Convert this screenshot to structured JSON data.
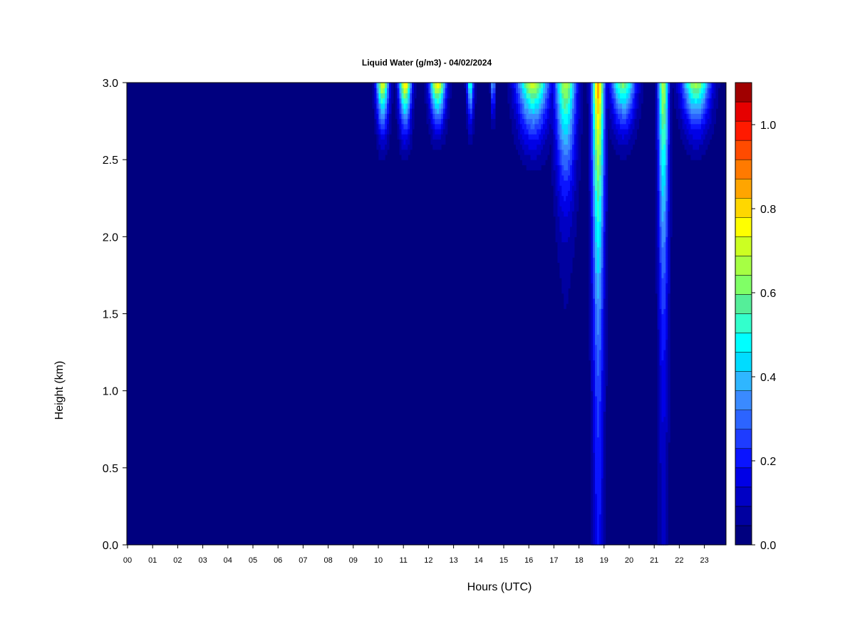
{
  "chart_data": {
    "type": "heatmap",
    "title": "Liquid Water (g/m3) - 04/02/2024",
    "xlabel": "Hours (UTC)",
    "ylabel": "Height (km)",
    "x_ticks": [
      "00",
      "01",
      "02",
      "03",
      "04",
      "05",
      "06",
      "07",
      "08",
      "09",
      "10",
      "11",
      "12",
      "13",
      "14",
      "15",
      "16",
      "17",
      "18",
      "19",
      "20",
      "21",
      "22",
      "23"
    ],
    "xlim": [
      0,
      23.9
    ],
    "y_ticks": [
      "0.0",
      "0.5",
      "1.0",
      "1.5",
      "2.0",
      "2.5",
      "3.0"
    ],
    "ylim": [
      0,
      3.0
    ],
    "colorbar": {
      "range": [
        0,
        1.1
      ],
      "step": 0.05,
      "ticks": [
        "0.0",
        "0.2",
        "0.4",
        "0.6",
        "0.8",
        "1.0"
      ],
      "colors": [
        "#00007F",
        "#0000A0",
        "#0000C4",
        "#0000E6",
        "#0A14FF",
        "#1E3CFF",
        "#2C64FF",
        "#3A8AFF",
        "#2FB6FF",
        "#00DCFF",
        "#00FFFF",
        "#33FFCC",
        "#55EE99",
        "#80FF66",
        "#A6FF44",
        "#CCFF22",
        "#FFFF00",
        "#FFD700",
        "#FFA500",
        "#FF7A00",
        "#FF4B00",
        "#FF1A00",
        "#E60000",
        "#A00000"
      ]
    },
    "grid": false,
    "cloud_events": [
      {
        "center_hour": 10.2,
        "width_hours": 0.35,
        "top_value": 0.85,
        "bottom_km": 2.3,
        "bottom_value": 0.0
      },
      {
        "center_hour": 11.1,
        "width_hours": 0.35,
        "top_value": 0.9,
        "bottom_km": 2.3,
        "bottom_value": 0.0
      },
      {
        "center_hour": 12.4,
        "width_hours": 0.45,
        "top_value": 0.9,
        "bottom_km": 2.4,
        "bottom_value": 0.0
      },
      {
        "center_hour": 13.7,
        "width_hours": 0.2,
        "top_value": 0.6,
        "bottom_km": 2.4,
        "bottom_value": 0.0
      },
      {
        "center_hour": 14.6,
        "width_hours": 0.12,
        "top_value": 0.5,
        "bottom_km": 2.5,
        "bottom_value": 0.0
      },
      {
        "center_hour": 16.2,
        "width_hours": 0.9,
        "top_value": 0.8,
        "bottom_km": 2.2,
        "bottom_value": 0.0
      },
      {
        "center_hour": 17.5,
        "width_hours": 0.6,
        "top_value": 0.75,
        "bottom_km": 1.5,
        "bottom_value": 0.05
      },
      {
        "center_hour": 18.8,
        "width_hours": 0.35,
        "top_value": 0.95,
        "bottom_km": 0.0,
        "bottom_value": 0.22
      },
      {
        "center_hour": 19.8,
        "width_hours": 0.7,
        "top_value": 0.7,
        "bottom_km": 2.3,
        "bottom_value": 0.0
      },
      {
        "center_hour": 21.4,
        "width_hours": 0.3,
        "top_value": 0.75,
        "bottom_km": 0.0,
        "bottom_value": 0.12
      },
      {
        "center_hour": 22.7,
        "width_hours": 0.8,
        "top_value": 0.75,
        "bottom_km": 2.3,
        "bottom_value": 0.0
      }
    ]
  }
}
